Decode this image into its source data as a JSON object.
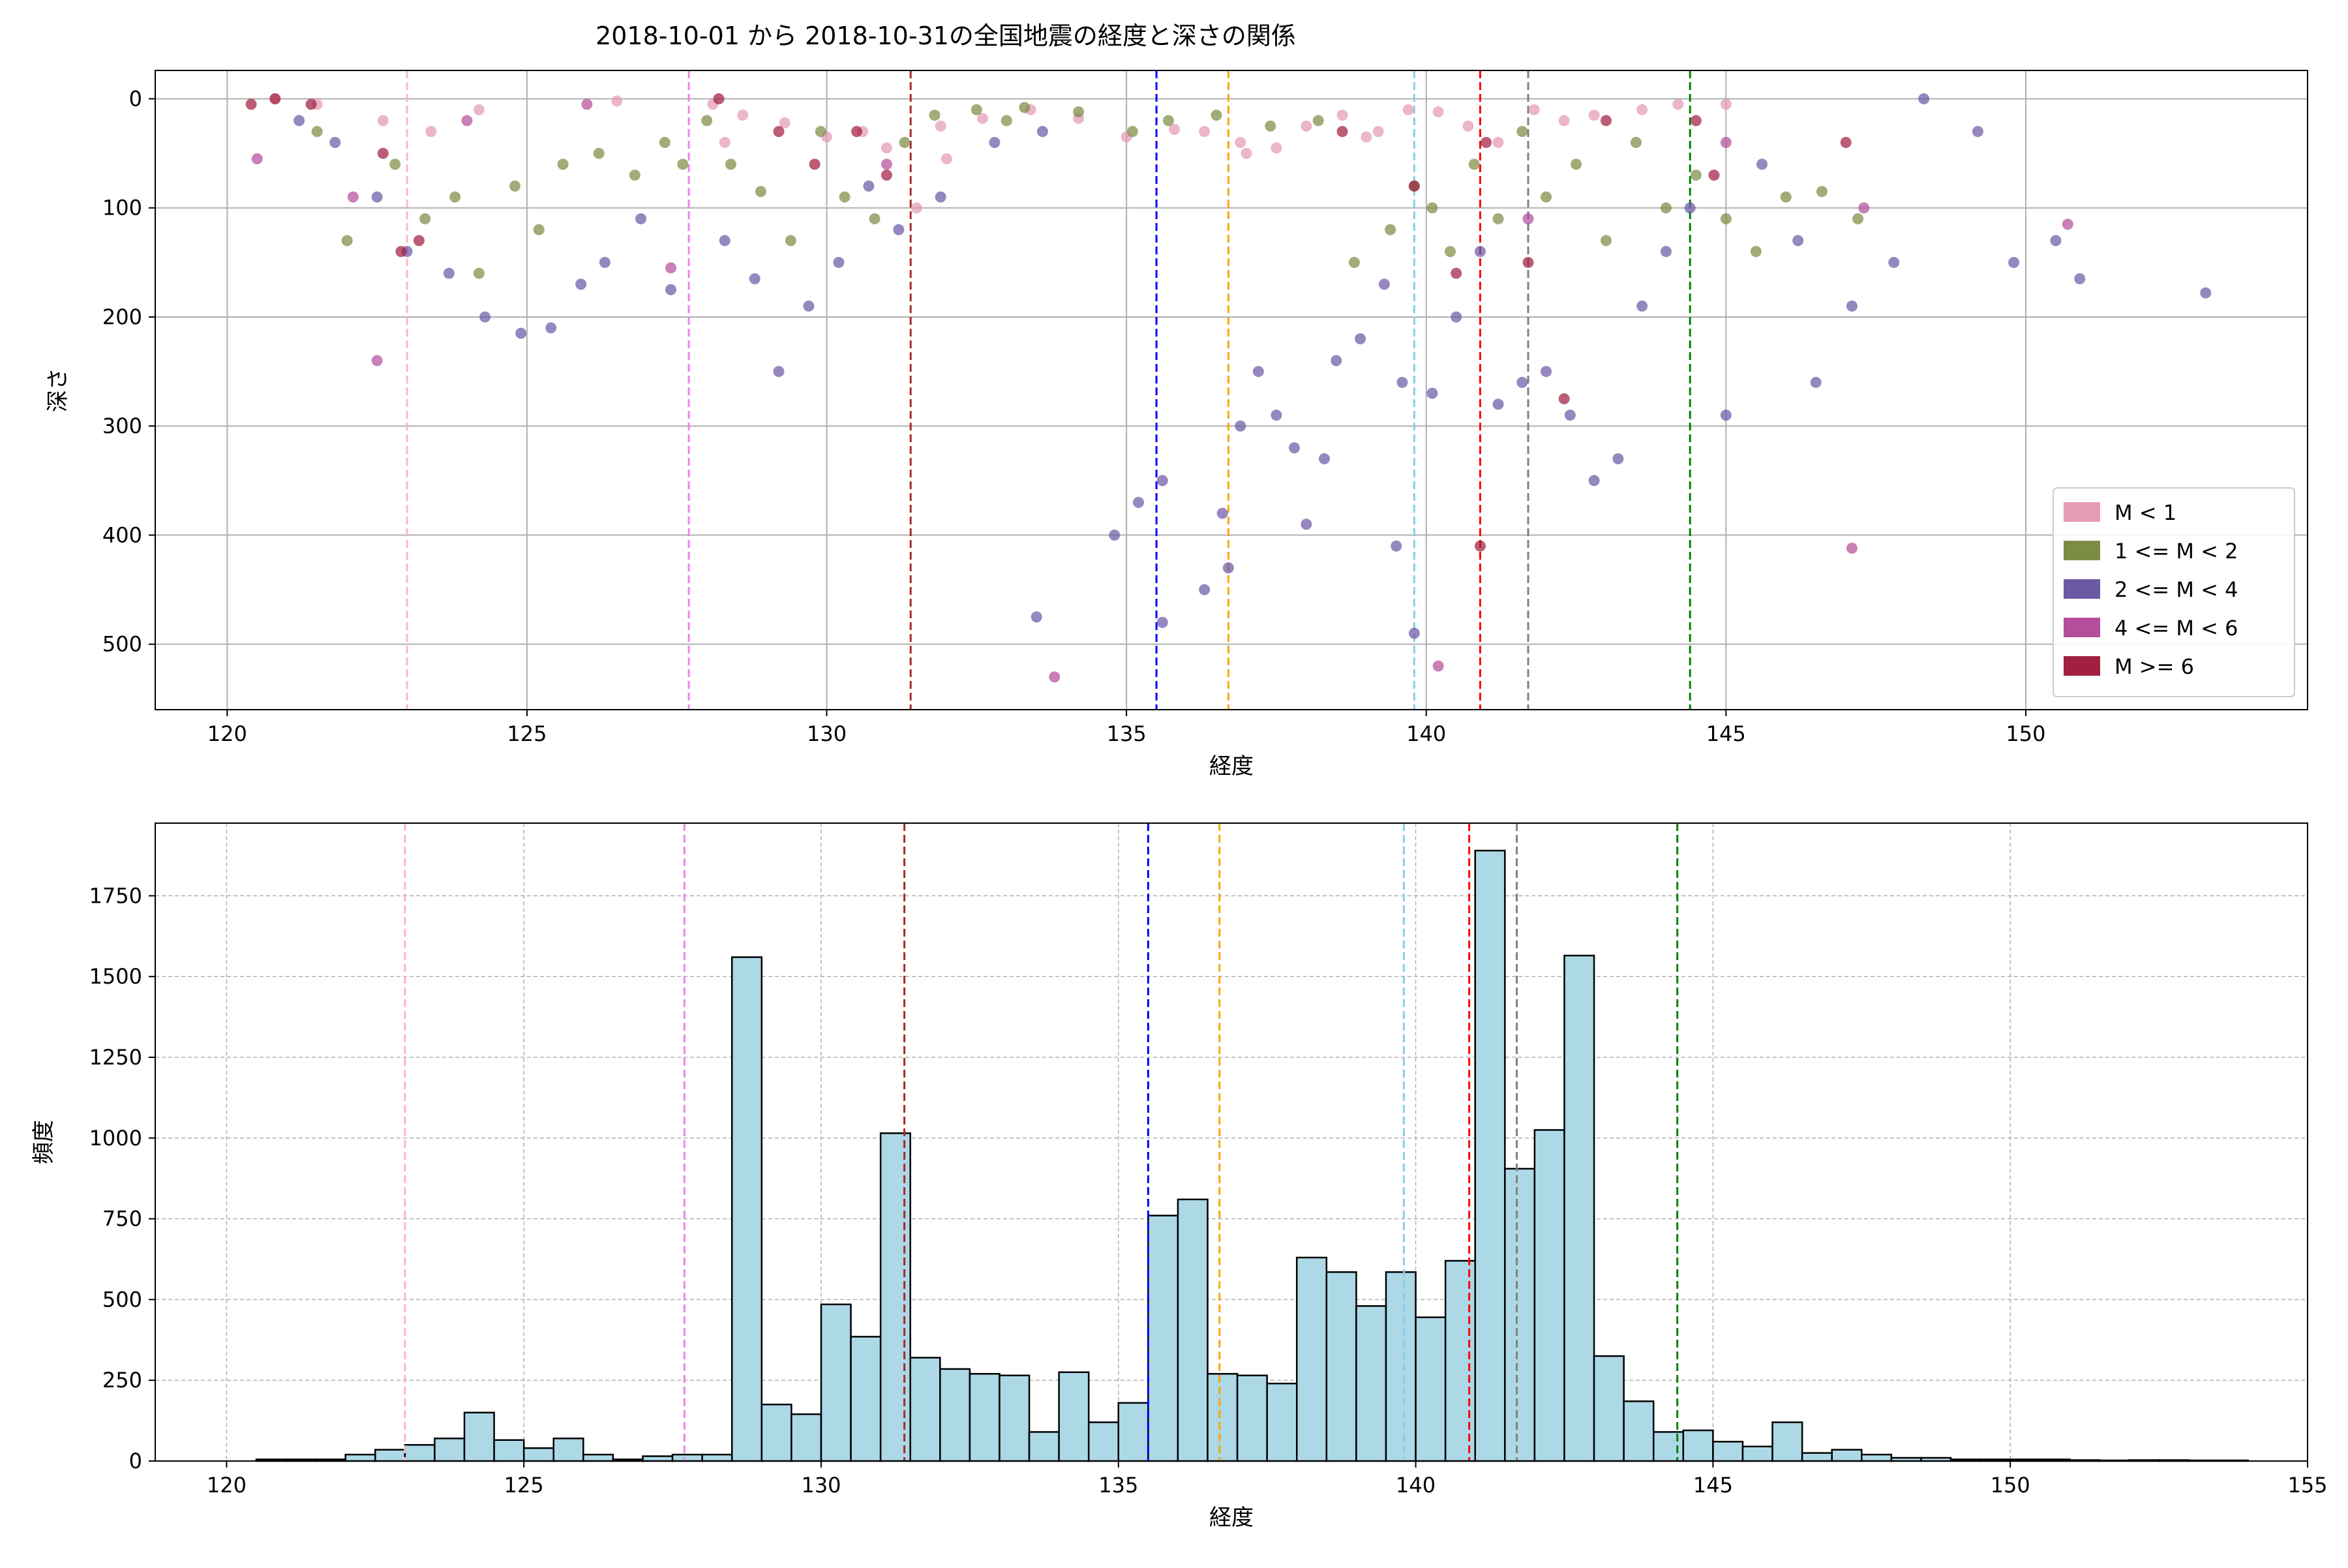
{
  "figure_title": "2018-10-01 から 2018-10-31の全国地震の経度と深さの関係",
  "colors": {
    "hist_fill": "#add8e6",
    "grid_solid": "#b0b0b0",
    "grid_dashed": "#b0b0b0"
  },
  "chart_data": [
    {
      "type": "scatter",
      "title": "2018-10-01 から 2018-10-31の全国地震の経度と深さの関係",
      "xlabel": "経度",
      "ylabel": "深さ",
      "xlim": [
        118.8,
        154.7
      ],
      "ylim": [
        560,
        -26
      ],
      "y_inverted": true,
      "xticks": [
        120,
        125,
        130,
        135,
        140,
        145,
        150
      ],
      "yticks": [
        0,
        100,
        200,
        300,
        400,
        500
      ],
      "grid": true,
      "legend_placement": "lower right",
      "series": [
        {
          "name": "M < 1",
          "color": "#e59ab6",
          "points": [
            [
              120.8,
              0
            ],
            [
              121.5,
              5
            ],
            [
              122.6,
              20
            ],
            [
              123.4,
              30
            ],
            [
              124.2,
              10
            ],
            [
              126.5,
              2
            ],
            [
              128.1,
              5
            ],
            [
              128.6,
              15
            ],
            [
              129.3,
              22
            ],
            [
              130.0,
              35
            ],
            [
              130.6,
              30
            ],
            [
              131.0,
              45
            ],
            [
              131.5,
              100
            ],
            [
              131.9,
              25
            ],
            [
              132.6,
              18
            ],
            [
              133.4,
              10
            ],
            [
              134.2,
              18
            ],
            [
              135.0,
              35
            ],
            [
              135.8,
              28
            ],
            [
              136.3,
              30
            ],
            [
              136.9,
              40
            ],
            [
              137.5,
              45
            ],
            [
              138.0,
              25
            ],
            [
              138.6,
              15
            ],
            [
              139.2,
              30
            ],
            [
              139.7,
              10
            ],
            [
              140.2,
              12
            ],
            [
              140.7,
              25
            ],
            [
              141.2,
              40
            ],
            [
              141.8,
              10
            ],
            [
              142.3,
              20
            ],
            [
              142.8,
              15
            ],
            [
              143.6,
              10
            ],
            [
              144.2,
              5
            ],
            [
              145.0,
              5
            ],
            [
              128.3,
              40
            ],
            [
              132.0,
              55
            ],
            [
              137.0,
              50
            ],
            [
              139.0,
              35
            ]
          ]
        },
        {
          "name": "1 <= M < 2",
          "color": "#7d8c45",
          "points": [
            [
              121.5,
              30
            ],
            [
              122.0,
              130
            ],
            [
              122.8,
              60
            ],
            [
              123.3,
              110
            ],
            [
              123.8,
              90
            ],
            [
              124.2,
              160
            ],
            [
              124.8,
              80
            ],
            [
              125.2,
              120
            ],
            [
              125.6,
              60
            ],
            [
              126.2,
              50
            ],
            [
              126.8,
              70
            ],
            [
              127.3,
              40
            ],
            [
              128.0,
              20
            ],
            [
              128.4,
              60
            ],
            [
              128.9,
              85
            ],
            [
              129.4,
              130
            ],
            [
              129.9,
              30
            ],
            [
              130.3,
              90
            ],
            [
              130.8,
              110
            ],
            [
              131.3,
              40
            ],
            [
              131.8,
              15
            ],
            [
              132.5,
              10
            ],
            [
              133.3,
              8
            ],
            [
              134.2,
              12
            ],
            [
              135.1,
              30
            ],
            [
              135.7,
              20
            ],
            [
              136.5,
              15
            ],
            [
              137.4,
              25
            ],
            [
              138.2,
              20
            ],
            [
              138.8,
              150
            ],
            [
              139.4,
              120
            ],
            [
              139.8,
              80
            ],
            [
              140.1,
              100
            ],
            [
              140.4,
              140
            ],
            [
              140.8,
              60
            ],
            [
              141.2,
              110
            ],
            [
              141.6,
              30
            ],
            [
              142.0,
              90
            ],
            [
              142.5,
              60
            ],
            [
              143.0,
              130
            ],
            [
              143.5,
              40
            ],
            [
              144.0,
              100
            ],
            [
              144.5,
              70
            ],
            [
              145.0,
              110
            ],
            [
              145.5,
              140
            ],
            [
              146.0,
              90
            ],
            [
              146.6,
              85
            ],
            [
              147.2,
              110
            ],
            [
              127.6,
              60
            ],
            [
              133.0,
              20
            ]
          ]
        },
        {
          "name": "2 <= M < 4",
          "color": "#6c59a6",
          "points": [
            [
              121.2,
              20
            ],
            [
              121.8,
              40
            ],
            [
              122.5,
              90
            ],
            [
              123.0,
              140
            ],
            [
              123.7,
              160
            ],
            [
              124.3,
              200
            ],
            [
              124.9,
              215
            ],
            [
              125.4,
              210
            ],
            [
              125.9,
              170
            ],
            [
              126.3,
              150
            ],
            [
              126.9,
              110
            ],
            [
              127.4,
              175
            ],
            [
              128.3,
              130
            ],
            [
              128.8,
              165
            ],
            [
              129.2,
              250
            ],
            [
              129.7,
              190
            ],
            [
              130.2,
              150
            ],
            [
              130.7,
              80
            ],
            [
              131.2,
              120
            ],
            [
              131.9,
              90
            ],
            [
              132.8,
              40
            ],
            [
              133.6,
              30
            ],
            [
              133.5,
              475
            ],
            [
              134.8,
              400
            ],
            [
              135.2,
              370
            ],
            [
              135.6,
              350
            ],
            [
              135.6,
              480
            ],
            [
              136.3,
              450
            ],
            [
              136.7,
              430
            ],
            [
              136.6,
              380
            ],
            [
              136.9,
              300
            ],
            [
              137.2,
              250
            ],
            [
              137.5,
              290
            ],
            [
              137.8,
              320
            ],
            [
              138.0,
              390
            ],
            [
              138.3,
              330
            ],
            [
              138.5,
              240
            ],
            [
              138.9,
              220
            ],
            [
              139.3,
              170
            ],
            [
              139.6,
              260
            ],
            [
              139.8,
              490
            ],
            [
              140.1,
              270
            ],
            [
              140.5,
              200
            ],
            [
              140.9,
              140
            ],
            [
              141.2,
              280
            ],
            [
              141.6,
              260
            ],
            [
              142.0,
              250
            ],
            [
              142.4,
              290
            ],
            [
              142.8,
              350
            ],
            [
              143.2,
              330
            ],
            [
              143.6,
              190
            ],
            [
              144.0,
              140
            ],
            [
              144.4,
              100
            ],
            [
              145.0,
              290
            ],
            [
              145.6,
              60
            ],
            [
              146.2,
              130
            ],
            [
              146.5,
              260
            ],
            [
              147.1,
              190
            ],
            [
              147.8,
              150
            ],
            [
              148.3,
              0
            ],
            [
              149.2,
              30
            ],
            [
              149.8,
              150
            ],
            [
              150.5,
              130
            ],
            [
              150.9,
              165
            ],
            [
              153.0,
              178
            ],
            [
              139.5,
              410
            ]
          ]
        },
        {
          "name": "4 <= M < 6",
          "color": "#b44d9b",
          "points": [
            [
              120.5,
              55
            ],
            [
              122.1,
              90
            ],
            [
              122.5,
              240
            ],
            [
              124.0,
              20
            ],
            [
              126.0,
              5
            ],
            [
              127.4,
              155
            ],
            [
              131.0,
              60
            ],
            [
              133.8,
              530
            ],
            [
              140.2,
              520
            ],
            [
              141.7,
              110
            ],
            [
              145.0,
              40
            ],
            [
              147.1,
              412
            ],
            [
              147.3,
              100
            ],
            [
              150.7,
              115
            ]
          ]
        },
        {
          "name": "M >= 6",
          "color": "#a11f40",
          "points": [
            [
              120.4,
              5
            ],
            [
              120.8,
              0
            ],
            [
              121.4,
              5
            ],
            [
              122.6,
              50
            ],
            [
              122.9,
              140
            ],
            [
              123.2,
              130
            ],
            [
              128.2,
              0
            ],
            [
              129.2,
              30
            ],
            [
              129.8,
              60
            ],
            [
              130.5,
              30
            ],
            [
              131.0,
              70
            ],
            [
              138.6,
              30
            ],
            [
              139.8,
              80
            ],
            [
              140.5,
              160
            ],
            [
              140.9,
              410
            ],
            [
              141.0,
              40
            ],
            [
              141.7,
              150
            ],
            [
              142.3,
              275
            ],
            [
              143.0,
              20
            ],
            [
              144.5,
              20
            ],
            [
              144.8,
              70
            ],
            [
              147.0,
              40
            ]
          ]
        }
      ],
      "vlines": [
        {
          "x": 123.0,
          "color": "#ffb6c1"
        },
        {
          "x": 127.7,
          "color": "#ee82ee"
        },
        {
          "x": 131.4,
          "color": "#a52a2a"
        },
        {
          "x": 135.5,
          "color": "#0000ff"
        },
        {
          "x": 136.7,
          "color": "#ffa500"
        },
        {
          "x": 139.8,
          "color": "#87ceeb"
        },
        {
          "x": 140.9,
          "color": "#ff0000"
        },
        {
          "x": 141.7,
          "color": "#808080"
        },
        {
          "x": 144.4,
          "color": "#008000"
        }
      ]
    },
    {
      "type": "bar",
      "xlabel": "経度",
      "ylabel": "頻度",
      "xlim": [
        118.8,
        155.0
      ],
      "ylim": [
        0,
        1975
      ],
      "xticks": [
        120,
        125,
        130,
        135,
        140,
        145,
        150,
        155
      ],
      "yticks": [
        0,
        250,
        500,
        750,
        1000,
        1250,
        1500,
        1750
      ],
      "grid": true,
      "bin_start": 120.5,
      "bin_width": 0.5,
      "values": [
        5,
        5,
        5,
        20,
        35,
        50,
        70,
        150,
        65,
        40,
        70,
        20,
        5,
        15,
        20,
        20,
        1560,
        175,
        145,
        485,
        385,
        1015,
        320,
        285,
        270,
        265,
        90,
        275,
        120,
        180,
        760,
        810,
        270,
        265,
        240,
        630,
        585,
        480,
        585,
        445,
        620,
        1890,
        905,
        1025,
        1565,
        325,
        185,
        90,
        95,
        60,
        45,
        120,
        25,
        35,
        20,
        10,
        10,
        5,
        5,
        5,
        5,
        3,
        2,
        3,
        3,
        2,
        2
      ]
    }
  ]
}
